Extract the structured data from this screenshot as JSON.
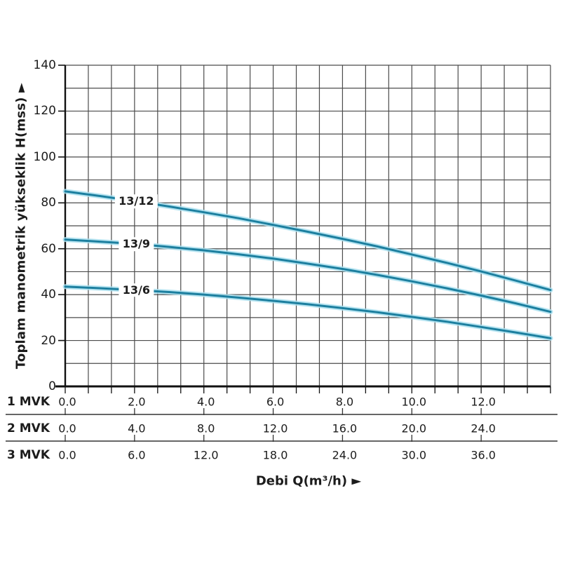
{
  "chart_data": {
    "type": "line",
    "title": "",
    "ylabel": "Toplam manometrik yükseklik H(mss) ►",
    "xlabel": "Debi Q(m³/h) ►",
    "ylim": [
      0,
      140
    ],
    "y_ticks": [
      0,
      20,
      40,
      60,
      80,
      100,
      120,
      140
    ],
    "y_minor_step": 10,
    "grid": true,
    "legend_position": "on-curve",
    "x_range": [
      0,
      14
    ],
    "x_major_step": 2,
    "x_minor_per_major": 3,
    "x_axis_rows": [
      {
        "name": "1 MVK",
        "ticks": [
          "0.0",
          "2.0",
          "4.0",
          "6.0",
          "8.0",
          "10.0",
          "12.0"
        ]
      },
      {
        "name": "2 MVK",
        "ticks": [
          "0.0",
          "4.0",
          "8.0",
          "12.0",
          "16.0",
          "20.0",
          "24.0"
        ]
      },
      {
        "name": "3 MVK",
        "ticks": [
          "0.0",
          "6.0",
          "12.0",
          "18.0",
          "24.0",
          "30.0",
          "36.0"
        ]
      }
    ],
    "series": [
      {
        "name": "13/12",
        "x": [
          0,
          1,
          2,
          3,
          4,
          5,
          6,
          7,
          8,
          9,
          10,
          11,
          12,
          13,
          14
        ],
        "values": [
          85,
          83,
          80.8,
          78.4,
          75.9,
          73.3,
          70.4,
          67.4,
          64.3,
          61,
          57.5,
          53.9,
          50.1,
          46.1,
          42
        ]
      },
      {
        "name": "13/9",
        "x": [
          0,
          1,
          2,
          3,
          4,
          5,
          6,
          7,
          8,
          9,
          10,
          11,
          12,
          13,
          14
        ],
        "values": [
          64,
          63.1,
          62.1,
          60.8,
          59.3,
          57.6,
          55.7,
          53.5,
          51.2,
          48.6,
          45.8,
          42.8,
          39.6,
          36.2,
          32.5
        ]
      },
      {
        "name": "13/6",
        "x": [
          0,
          1,
          2,
          3,
          4,
          5,
          6,
          7,
          8,
          9,
          10,
          11,
          12,
          13,
          14
        ],
        "values": [
          43.5,
          42.8,
          42,
          41.1,
          40,
          38.7,
          37.3,
          35.8,
          34.1,
          32.3,
          30.3,
          28.2,
          25.9,
          23.5,
          21
        ]
      }
    ],
    "colors": {
      "curve": "#1c7f9f",
      "curve_halo": "#a9dfee",
      "grid": "#4b4b4b",
      "axis": "#111111",
      "separator": "#333333",
      "text": "#1c1c1c",
      "background": "#ffffff"
    }
  }
}
